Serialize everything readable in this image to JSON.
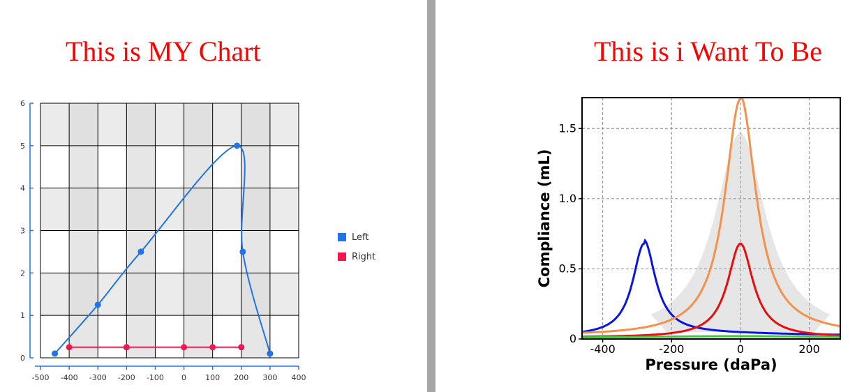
{
  "titles": {
    "left": "This is MY Chart",
    "right": "This is i Want To Be"
  },
  "colors": {
    "title": "#ff0000",
    "left_series": "#1e74e8",
    "right_series": "#f0184f",
    "divider": "#a6a6a6"
  },
  "chart_data": [
    {
      "type": "line",
      "title": "",
      "xlabel": "",
      "ylabel": "",
      "xlim": [
        -500,
        400
      ],
      "ylim": [
        0,
        6
      ],
      "x_ticks": [
        "-500",
        "-400",
        "-300",
        "-200",
        "-100",
        "0",
        "100",
        "200",
        "300",
        "400"
      ],
      "y_ticks": [
        "0",
        "1",
        "2",
        "3",
        "4",
        "5",
        "6"
      ],
      "grid": true,
      "legend_position": "right",
      "series": [
        {
          "name": "Left",
          "color": "#1e74e8",
          "points": [
            [
              -450,
              0.1
            ],
            [
              -300,
              1.25
            ],
            [
              -150,
              2.5
            ],
            [
              185,
              5.0
            ],
            [
              205,
              2.5
            ],
            [
              300,
              0.1
            ]
          ]
        },
        {
          "name": "Right",
          "color": "#f0184f",
          "points": [
            [
              -400,
              0.25
            ],
            [
              -200,
              0.25
            ],
            [
              0,
              0.25
            ],
            [
              100,
              0.25
            ],
            [
              200,
              0.25
            ]
          ]
        }
      ]
    },
    {
      "type": "line",
      "title": "",
      "xlabel": "Pressure (daPa)",
      "ylabel": "Compliance (mL)",
      "xlim": [
        -460,
        290
      ],
      "ylim": [
        0,
        1.72
      ],
      "x_ticks": [
        "-400",
        "-200",
        "0",
        "200"
      ],
      "y_ticks": [
        "0",
        "0.5",
        "1.0",
        "1.5"
      ],
      "grid": true,
      "band": {
        "color": "#e6e6e6",
        "peak": 1.45,
        "center": 0,
        "half_width": 90
      },
      "series": [
        {
          "color": "#0a14e6",
          "peak_x": -280,
          "peak_y": 0.68,
          "half_width": 40,
          "baseline": 0.02,
          "tail": 0.025
        },
        {
          "color": "#f5914b",
          "peak_x": 0,
          "peak_y": 1.71,
          "half_width": 55,
          "baseline": 0.02,
          "tail": 0.02
        },
        {
          "color": "#e60d0d",
          "peak_x": 0,
          "peak_y": 0.68,
          "half_width": 45,
          "baseline": 0.01,
          "tail": 0.0
        },
        {
          "color": "#3cc83c",
          "peak_x": 0,
          "peak_y": 0.02,
          "half_width": 400,
          "baseline": 0.005,
          "tail": 0.0
        }
      ]
    }
  ]
}
